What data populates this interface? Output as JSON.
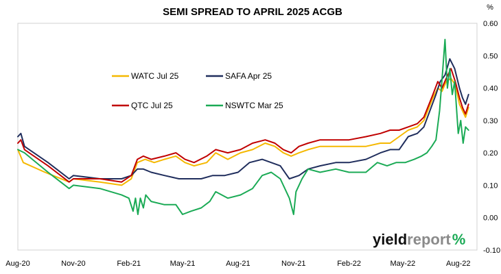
{
  "chart_data": {
    "type": "line",
    "title": "SEMI SPREAD TO APRIL 2025 ACGB",
    "y_unit_label": "%",
    "ylim": [
      -0.1,
      0.6
    ],
    "y_ticks": [
      "0.60",
      "0.50",
      "0.40",
      "0.30",
      "0.20",
      "0.10",
      "0.00",
      "-0.10"
    ],
    "y_tick_values": [
      0.6,
      0.5,
      0.4,
      0.3,
      0.2,
      0.1,
      0.0,
      -0.1
    ],
    "x_tick_labels": [
      "Aug-20",
      "Nov-20",
      "Feb-21",
      "May-21",
      "Aug-21",
      "Nov-21",
      "Feb-22",
      "May-22",
      "Aug-22"
    ],
    "x_tick_dates": [
      "2020-08-01",
      "2020-11-01",
      "2021-02-01",
      "2021-05-01",
      "2021-08-01",
      "2021-11-01",
      "2022-02-01",
      "2022-05-01",
      "2022-08-01"
    ],
    "xlim": [
      "2020-08-01",
      "2022-09-01"
    ],
    "grid": false,
    "legend_position": "upper-left inside plot",
    "watermark": {
      "text_main": "yield",
      "text_second": "report",
      "symbol": "%"
    },
    "series": [
      {
        "name": "WATC Jul 25",
        "color": "#F5B800",
        "points": [
          [
            "2020-08-01",
            0.21
          ],
          [
            "2020-08-10",
            0.17
          ],
          [
            "2020-09-15",
            0.14
          ],
          [
            "2020-10-25",
            0.11
          ],
          [
            "2020-11-01",
            0.12
          ],
          [
            "2020-12-15",
            0.11
          ],
          [
            "2021-01-20",
            0.1
          ],
          [
            "2021-02-05",
            0.12
          ],
          [
            "2021-02-15",
            0.17
          ],
          [
            "2021-02-28",
            0.18
          ],
          [
            "2021-03-15",
            0.17
          ],
          [
            "2021-04-01",
            0.18
          ],
          [
            "2021-04-20",
            0.19
          ],
          [
            "2021-05-05",
            0.17
          ],
          [
            "2021-05-20",
            0.16
          ],
          [
            "2021-06-10",
            0.17
          ],
          [
            "2021-06-25",
            0.2
          ],
          [
            "2021-07-15",
            0.18
          ],
          [
            "2021-08-05",
            0.2
          ],
          [
            "2021-08-25",
            0.21
          ],
          [
            "2021-09-15",
            0.23
          ],
          [
            "2021-10-01",
            0.22
          ],
          [
            "2021-10-15",
            0.2
          ],
          [
            "2021-10-28",
            0.19
          ],
          [
            "2021-11-10",
            0.2
          ],
          [
            "2021-11-25",
            0.21
          ],
          [
            "2021-12-15",
            0.22
          ],
          [
            "2022-01-10",
            0.22
          ],
          [
            "2022-02-01",
            0.22
          ],
          [
            "2022-03-01",
            0.22
          ],
          [
            "2022-03-25",
            0.23
          ],
          [
            "2022-04-10",
            0.23
          ],
          [
            "2022-04-25",
            0.25
          ],
          [
            "2022-05-10",
            0.27
          ],
          [
            "2022-05-25",
            0.28
          ],
          [
            "2022-06-05",
            0.3
          ],
          [
            "2022-06-20",
            0.37
          ],
          [
            "2022-06-28",
            0.4
          ],
          [
            "2022-07-05",
            0.39
          ],
          [
            "2022-07-12",
            0.42
          ],
          [
            "2022-07-20",
            0.43
          ],
          [
            "2022-07-27",
            0.41
          ],
          [
            "2022-08-03",
            0.35
          ],
          [
            "2022-08-08",
            0.33
          ],
          [
            "2022-08-13",
            0.31
          ],
          [
            "2022-08-18",
            0.34
          ]
        ]
      },
      {
        "name": "SAFA Apr 25",
        "color": "#1F2D5C",
        "points": [
          [
            "2020-08-01",
            0.25
          ],
          [
            "2020-08-06",
            0.26
          ],
          [
            "2020-08-12",
            0.22
          ],
          [
            "2020-09-20",
            0.17
          ],
          [
            "2020-10-25",
            0.12
          ],
          [
            "2020-11-01",
            0.13
          ],
          [
            "2020-12-15",
            0.12
          ],
          [
            "2021-01-20",
            0.12
          ],
          [
            "2021-02-05",
            0.13
          ],
          [
            "2021-02-15",
            0.15
          ],
          [
            "2021-02-25",
            0.15
          ],
          [
            "2021-03-10",
            0.14
          ],
          [
            "2021-04-01",
            0.13
          ],
          [
            "2021-04-25",
            0.12
          ],
          [
            "2021-05-10",
            0.12
          ],
          [
            "2021-06-01",
            0.12
          ],
          [
            "2021-06-20",
            0.13
          ],
          [
            "2021-07-10",
            0.13
          ],
          [
            "2021-08-01",
            0.14
          ],
          [
            "2021-08-20",
            0.17
          ],
          [
            "2021-09-10",
            0.18
          ],
          [
            "2021-09-25",
            0.17
          ],
          [
            "2021-10-10",
            0.16
          ],
          [
            "2021-10-25",
            0.12
          ],
          [
            "2021-11-10",
            0.13
          ],
          [
            "2021-11-25",
            0.15
          ],
          [
            "2021-12-15",
            0.16
          ],
          [
            "2022-01-10",
            0.17
          ],
          [
            "2022-02-01",
            0.17
          ],
          [
            "2022-03-01",
            0.18
          ],
          [
            "2022-03-25",
            0.2
          ],
          [
            "2022-04-10",
            0.21
          ],
          [
            "2022-04-25",
            0.21
          ],
          [
            "2022-05-10",
            0.25
          ],
          [
            "2022-05-25",
            0.26
          ],
          [
            "2022-06-05",
            0.28
          ],
          [
            "2022-06-15",
            0.33
          ],
          [
            "2022-06-25",
            0.38
          ],
          [
            "2022-07-02",
            0.42
          ],
          [
            "2022-07-10",
            0.44
          ],
          [
            "2022-07-18",
            0.49
          ],
          [
            "2022-07-26",
            0.46
          ],
          [
            "2022-08-03",
            0.4
          ],
          [
            "2022-08-08",
            0.37
          ],
          [
            "2022-08-13",
            0.35
          ],
          [
            "2022-08-18",
            0.38
          ]
        ]
      },
      {
        "name": "QTC Jul 25",
        "color": "#C00000",
        "points": [
          [
            "2020-08-01",
            0.23
          ],
          [
            "2020-08-06",
            0.24
          ],
          [
            "2020-08-12",
            0.21
          ],
          [
            "2020-09-20",
            0.16
          ],
          [
            "2020-10-25",
            0.11
          ],
          [
            "2020-11-01",
            0.12
          ],
          [
            "2020-12-15",
            0.12
          ],
          [
            "2021-01-20",
            0.11
          ],
          [
            "2021-02-05",
            0.13
          ],
          [
            "2021-02-15",
            0.18
          ],
          [
            "2021-02-25",
            0.19
          ],
          [
            "2021-03-10",
            0.18
          ],
          [
            "2021-04-01",
            0.19
          ],
          [
            "2021-04-20",
            0.2
          ],
          [
            "2021-05-05",
            0.18
          ],
          [
            "2021-05-20",
            0.17
          ],
          [
            "2021-06-10",
            0.19
          ],
          [
            "2021-06-25",
            0.21
          ],
          [
            "2021-07-15",
            0.2
          ],
          [
            "2021-08-05",
            0.21
          ],
          [
            "2021-08-25",
            0.23
          ],
          [
            "2021-09-15",
            0.24
          ],
          [
            "2021-10-01",
            0.23
          ],
          [
            "2021-10-15",
            0.21
          ],
          [
            "2021-10-28",
            0.2
          ],
          [
            "2021-11-10",
            0.22
          ],
          [
            "2021-11-25",
            0.23
          ],
          [
            "2021-12-15",
            0.24
          ],
          [
            "2022-01-10",
            0.24
          ],
          [
            "2022-02-01",
            0.24
          ],
          [
            "2022-03-01",
            0.25
          ],
          [
            "2022-03-25",
            0.26
          ],
          [
            "2022-04-10",
            0.27
          ],
          [
            "2022-04-25",
            0.27
          ],
          [
            "2022-05-10",
            0.28
          ],
          [
            "2022-05-25",
            0.29
          ],
          [
            "2022-06-05",
            0.31
          ],
          [
            "2022-06-20",
            0.38
          ],
          [
            "2022-06-28",
            0.42
          ],
          [
            "2022-07-05",
            0.4
          ],
          [
            "2022-07-12",
            0.43
          ],
          [
            "2022-07-20",
            0.46
          ],
          [
            "2022-07-27",
            0.42
          ],
          [
            "2022-08-03",
            0.37
          ],
          [
            "2022-08-08",
            0.34
          ],
          [
            "2022-08-13",
            0.32
          ],
          [
            "2022-08-18",
            0.35
          ]
        ]
      },
      {
        "name": "NSWTC Mar 25",
        "color": "#1AAA55",
        "points": [
          [
            "2020-08-01",
            0.21
          ],
          [
            "2020-08-12",
            0.2
          ],
          [
            "2020-09-20",
            0.14
          ],
          [
            "2020-10-25",
            0.09
          ],
          [
            "2020-11-01",
            0.1
          ],
          [
            "2020-12-15",
            0.09
          ],
          [
            "2021-01-20",
            0.07
          ],
          [
            "2021-02-01",
            0.06
          ],
          [
            "2021-02-08",
            0.02
          ],
          [
            "2021-02-12",
            0.06
          ],
          [
            "2021-02-16",
            0.01
          ],
          [
            "2021-02-20",
            0.06
          ],
          [
            "2021-02-25",
            0.03
          ],
          [
            "2021-03-01",
            0.07
          ],
          [
            "2021-03-10",
            0.05
          ],
          [
            "2021-04-01",
            0.04
          ],
          [
            "2021-04-20",
            0.04
          ],
          [
            "2021-05-01",
            0.01
          ],
          [
            "2021-05-15",
            0.02
          ],
          [
            "2021-06-01",
            0.03
          ],
          [
            "2021-06-15",
            0.05
          ],
          [
            "2021-06-25",
            0.08
          ],
          [
            "2021-07-15",
            0.06
          ],
          [
            "2021-08-05",
            0.07
          ],
          [
            "2021-08-25",
            0.09
          ],
          [
            "2021-09-10",
            0.13
          ],
          [
            "2021-09-25",
            0.14
          ],
          [
            "2021-10-10",
            0.12
          ],
          [
            "2021-10-25",
            0.06
          ],
          [
            "2021-11-01",
            0.01
          ],
          [
            "2021-11-05",
            0.08
          ],
          [
            "2021-11-15",
            0.12
          ],
          [
            "2021-11-25",
            0.15
          ],
          [
            "2021-12-15",
            0.14
          ],
          [
            "2022-01-10",
            0.15
          ],
          [
            "2022-02-01",
            0.14
          ],
          [
            "2022-03-01",
            0.14
          ],
          [
            "2022-03-20",
            0.17
          ],
          [
            "2022-04-05",
            0.16
          ],
          [
            "2022-04-20",
            0.17
          ],
          [
            "2022-05-05",
            0.17
          ],
          [
            "2022-05-20",
            0.18
          ],
          [
            "2022-06-01",
            0.19
          ],
          [
            "2022-06-10",
            0.2
          ],
          [
            "2022-06-18",
            0.22
          ],
          [
            "2022-06-25",
            0.24
          ],
          [
            "2022-07-01",
            0.33
          ],
          [
            "2022-07-06",
            0.45
          ],
          [
            "2022-07-10",
            0.55
          ],
          [
            "2022-07-14",
            0.4
          ],
          [
            "2022-07-18",
            0.46
          ],
          [
            "2022-07-22",
            0.38
          ],
          [
            "2022-07-26",
            0.42
          ],
          [
            "2022-08-01",
            0.26
          ],
          [
            "2022-08-05",
            0.3
          ],
          [
            "2022-08-09",
            0.23
          ],
          [
            "2022-08-13",
            0.28
          ],
          [
            "2022-08-18",
            0.27
          ]
        ]
      }
    ]
  }
}
